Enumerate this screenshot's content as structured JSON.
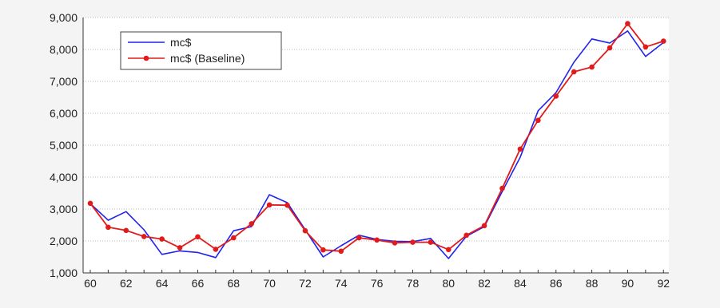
{
  "chart_data": {
    "type": "line",
    "x": [
      60,
      61,
      62,
      63,
      64,
      65,
      66,
      67,
      68,
      69,
      70,
      71,
      72,
      73,
      74,
      75,
      76,
      77,
      78,
      79,
      80,
      81,
      82,
      83,
      84,
      85,
      86,
      87,
      88,
      89,
      90,
      91,
      92
    ],
    "x_tick_labels": [
      "60",
      "62",
      "64",
      "66",
      "68",
      "70",
      "72",
      "74",
      "76",
      "78",
      "80",
      "82",
      "84",
      "86",
      "88",
      "90",
      "92"
    ],
    "x_tick_values": [
      60,
      62,
      64,
      66,
      68,
      70,
      72,
      74,
      76,
      78,
      80,
      82,
      84,
      86,
      88,
      90,
      92
    ],
    "y_tick_labels": [
      "1,000",
      "2,000",
      "3,000",
      "4,000",
      "5,000",
      "6,000",
      "7,000",
      "8,000",
      "9,000"
    ],
    "y_tick_values": [
      1000,
      2000,
      3000,
      4000,
      5000,
      6000,
      7000,
      8000,
      9000
    ],
    "ylim": [
      1000,
      9000
    ],
    "xlim": [
      59.6,
      92.3
    ],
    "grid": "horizontal",
    "legend_position": "top-left",
    "series": [
      {
        "name": "mc$",
        "color": "#2222ee",
        "marker": "none",
        "values": [
          3170,
          2650,
          2920,
          2350,
          1580,
          1690,
          1640,
          1480,
          2320,
          2450,
          3450,
          3200,
          2350,
          1500,
          1850,
          2180,
          2050,
          1990,
          1980,
          2080,
          1450,
          2150,
          2450,
          3550,
          4620,
          6080,
          6650,
          7600,
          8330,
          8200,
          8580,
          7780,
          8220
        ]
      },
      {
        "name": "mc$ (Baseline)",
        "color": "#e11b1b",
        "marker": "circle",
        "values": [
          3180,
          2430,
          2330,
          2140,
          2060,
          1790,
          2130,
          1740,
          2100,
          2540,
          3130,
          3120,
          2320,
          1720,
          1680,
          2100,
          2030,
          1940,
          1960,
          1960,
          1730,
          2180,
          2480,
          3650,
          4880,
          5780,
          6540,
          7300,
          7450,
          8050,
          8810,
          8080,
          8260
        ]
      }
    ]
  }
}
